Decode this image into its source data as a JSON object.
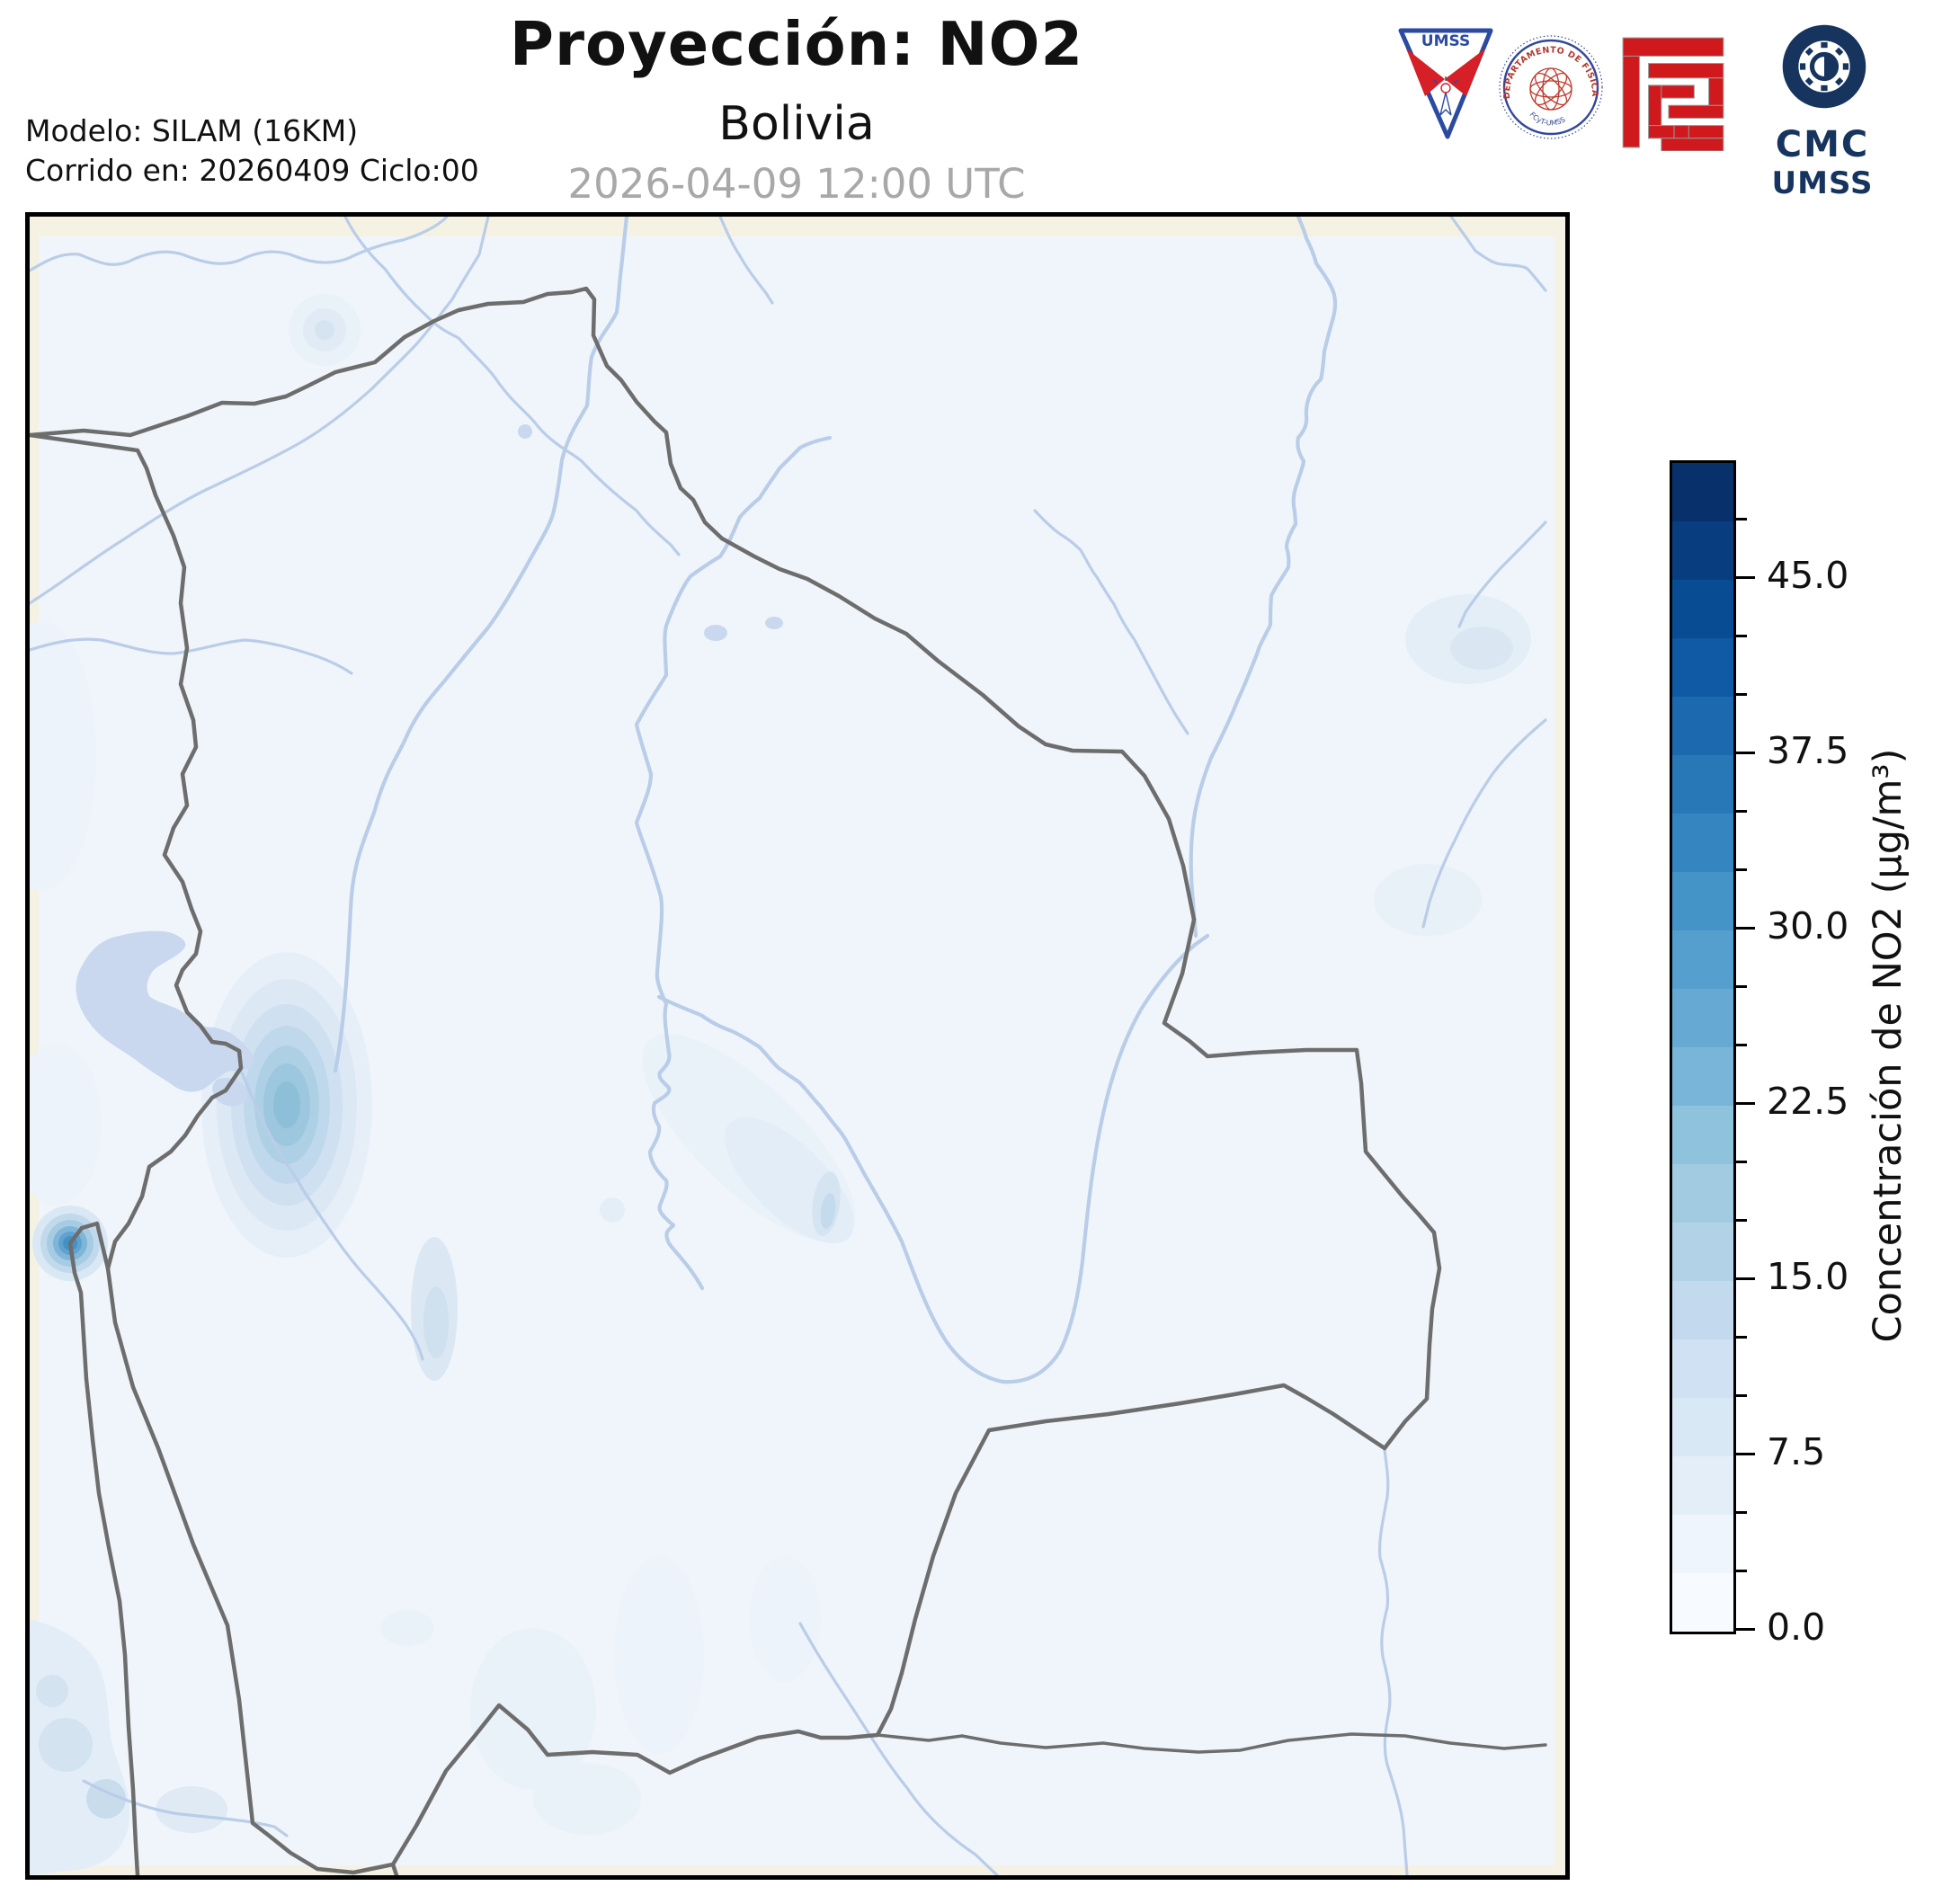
{
  "header": {
    "title": "Proyección: NO2",
    "subtitle": "Bolivia",
    "datetime": "2026-04-09 12:00 UTC",
    "model_line1": "Modelo: SILAM (16KM)",
    "model_line2": "Corrido en: 20260409 Ciclo:00"
  },
  "logos": {
    "umss_pennant_text": "UMSS",
    "fisica_arc_text": "DEPARTAMENTO DE FÍSICA",
    "fisica_sub_text": "FCyT-UMSS",
    "cmc_line1": "CMC",
    "cmc_line2": "UMSS"
  },
  "colorbar": {
    "label": "Concentración de NO2 (µg/m³)",
    "min": 0,
    "max": 50,
    "segment_step": 2.5,
    "minor_tick_step": 2.5,
    "major_ticks": [
      {
        "value": 0,
        "label": "0.0"
      },
      {
        "value": 7.5,
        "label": "7.5"
      },
      {
        "value": 15,
        "label": "15.0"
      },
      {
        "value": 22.5,
        "label": "22.5"
      },
      {
        "value": 30,
        "label": "30.0"
      },
      {
        "value": 37.5,
        "label": "37.5"
      },
      {
        "value": 45,
        "label": "45.0"
      }
    ],
    "segment_colors": [
      "#f7fbff",
      "#eef5fc",
      "#e3eef8",
      "#d9e8f5",
      "#cfe1f2",
      "#c2d9ee",
      "#b2d2e8",
      "#a2cbe2",
      "#8fc2dd",
      "#79b5d9",
      "#66aad3",
      "#549fcd",
      "#4594c7",
      "#3585c0",
      "#2878b8",
      "#1c69af",
      "#1059a5",
      "#084c94",
      "#083e7f",
      "#08306b"
    ]
  },
  "map": {
    "region": "Bolivia",
    "colors": {
      "frame": "#000000",
      "margin_bg": "#f5f2e3",
      "data_bg": "#f0f5fb",
      "border_line": "#6d6d6d",
      "river": "#b9cde9",
      "lake": "#c9d8ef",
      "plume_strong": "#4292c6",
      "plume_weak": "#e6eff8"
    }
  }
}
